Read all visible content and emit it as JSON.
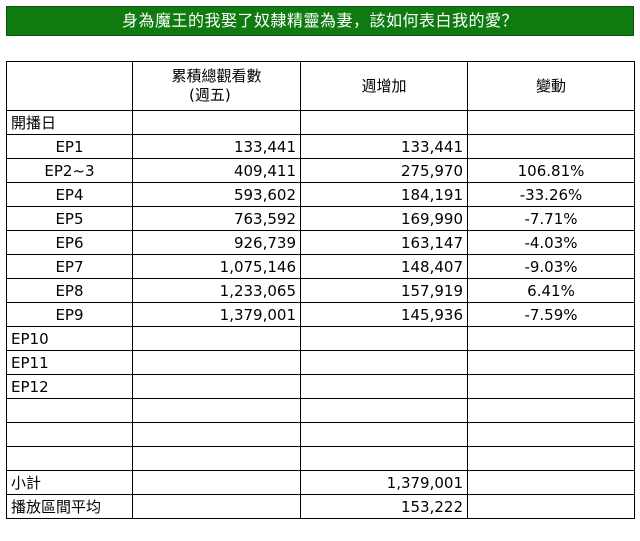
{
  "banner": {
    "title": "身為魔王的我娶了奴隸精靈為妻，該如何表白我的愛？"
  },
  "headers": {
    "cumulative_line1": "累積總觀看數",
    "cumulative_line2": "(週五)",
    "weekly": "週增加",
    "change": "變動"
  },
  "premiere_label": "開播日",
  "rows": [
    {
      "ep": "EP1",
      "cumulative": "133,441",
      "weekly": "133,441",
      "change": ""
    },
    {
      "ep": "EP2~3",
      "cumulative": "409,411",
      "weekly": "275,970",
      "change": "106.81%"
    },
    {
      "ep": "EP4",
      "cumulative": "593,602",
      "weekly": "184,191",
      "change": "-33.26%"
    },
    {
      "ep": "EP5",
      "cumulative": "763,592",
      "weekly": "169,990",
      "change": "-7.71%"
    },
    {
      "ep": "EP6",
      "cumulative": "926,739",
      "weekly": "163,147",
      "change": "-4.03%"
    },
    {
      "ep": "EP7",
      "cumulative": "1,075,146",
      "weekly": "148,407",
      "change": "-9.03%"
    },
    {
      "ep": "EP8",
      "cumulative": "1,233,065",
      "weekly": "157,919",
      "change": "6.41%"
    },
    {
      "ep": "EP9",
      "cumulative": "1,379,001",
      "weekly": "145,936",
      "change": "-7.59%"
    },
    {
      "ep": "EP10",
      "cumulative": "",
      "weekly": "",
      "change": ""
    },
    {
      "ep": "EP11",
      "cumulative": "",
      "weekly": "",
      "change": ""
    },
    {
      "ep": "EP12",
      "cumulative": "",
      "weekly": "",
      "change": ""
    }
  ],
  "subtotal": {
    "label": "小計",
    "weekly": "1,379,001"
  },
  "average": {
    "label": "播放區間平均",
    "weekly": "153,222"
  }
}
